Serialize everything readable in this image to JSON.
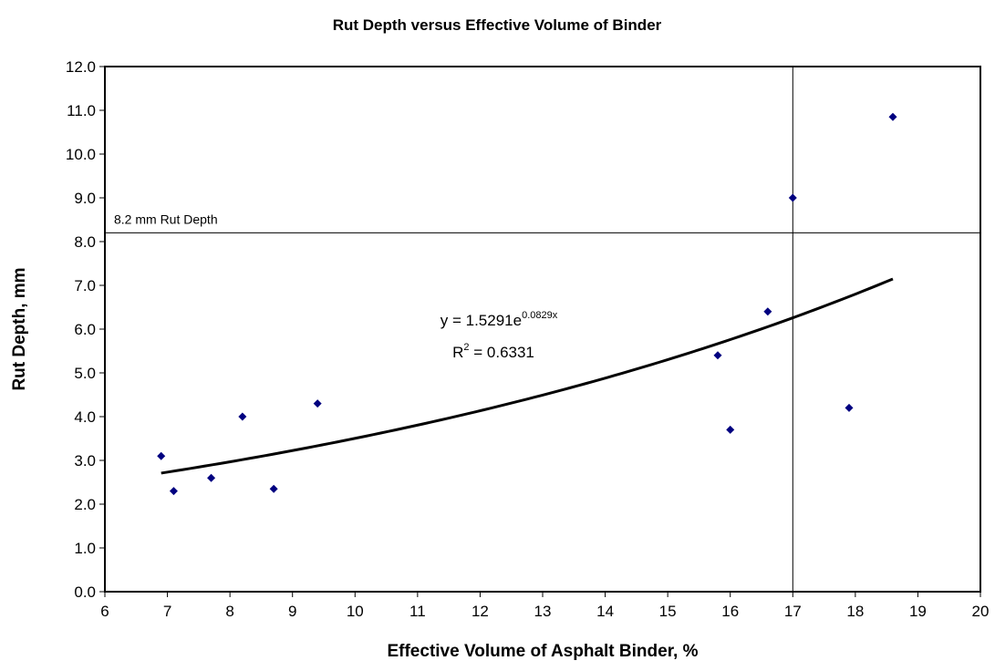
{
  "chart_data": {
    "type": "scatter",
    "title": "Rut Depth versus Effective Volume of Binder",
    "x_label": "Effective Volume of Asphalt Binder, %",
    "y_label": "Rut Depth, mm",
    "x": [
      6.9,
      7.1,
      7.7,
      8.2,
      8.7,
      9.4,
      15.8,
      16.0,
      16.6,
      17.0,
      17.9,
      18.6
    ],
    "values": [
      3.1,
      2.3,
      2.6,
      4.0,
      2.35,
      4.3,
      5.4,
      3.7,
      6.4,
      9.0,
      4.2,
      10.85
    ],
    "color": "#000080",
    "xlim": [
      6,
      20
    ],
    "xticks": [
      6,
      7,
      8,
      9,
      10,
      11,
      12,
      13,
      14,
      15,
      16,
      17,
      18,
      19,
      20
    ],
    "ylim": [
      0,
      12
    ],
    "yticks": [
      {
        "value": 0,
        "label": "0.0"
      },
      {
        "value": 1,
        "label": "1.0"
      },
      {
        "value": 2,
        "label": "2.0"
      },
      {
        "value": 3,
        "label": "3.0"
      },
      {
        "value": 4,
        "label": "4.0"
      },
      {
        "value": 5,
        "label": "5.0"
      },
      {
        "value": 6,
        "label": "6.0"
      },
      {
        "value": 7,
        "label": "7.0"
      },
      {
        "value": 8,
        "label": "8.0"
      },
      {
        "value": 9,
        "label": "9.0"
      },
      {
        "value": 10,
        "label": "10.0"
      },
      {
        "value": 11,
        "label": "11.0"
      },
      {
        "value": 12,
        "label": "12.0"
      }
    ],
    "trendline": {
      "a": 1.5291,
      "b": 0.0829,
      "color": "#000000",
      "equation_base": "y = 1.5291e",
      "equation_exponent": "0.0829x",
      "r2_symbol": "R",
      "r2_power": "2",
      "r2_value": " = 0.6331"
    },
    "hlines": [
      {
        "value": 8.2,
        "label": "8.2 mm Rut Depth"
      }
    ],
    "vlines": [
      {
        "value": 17
      }
    ]
  }
}
